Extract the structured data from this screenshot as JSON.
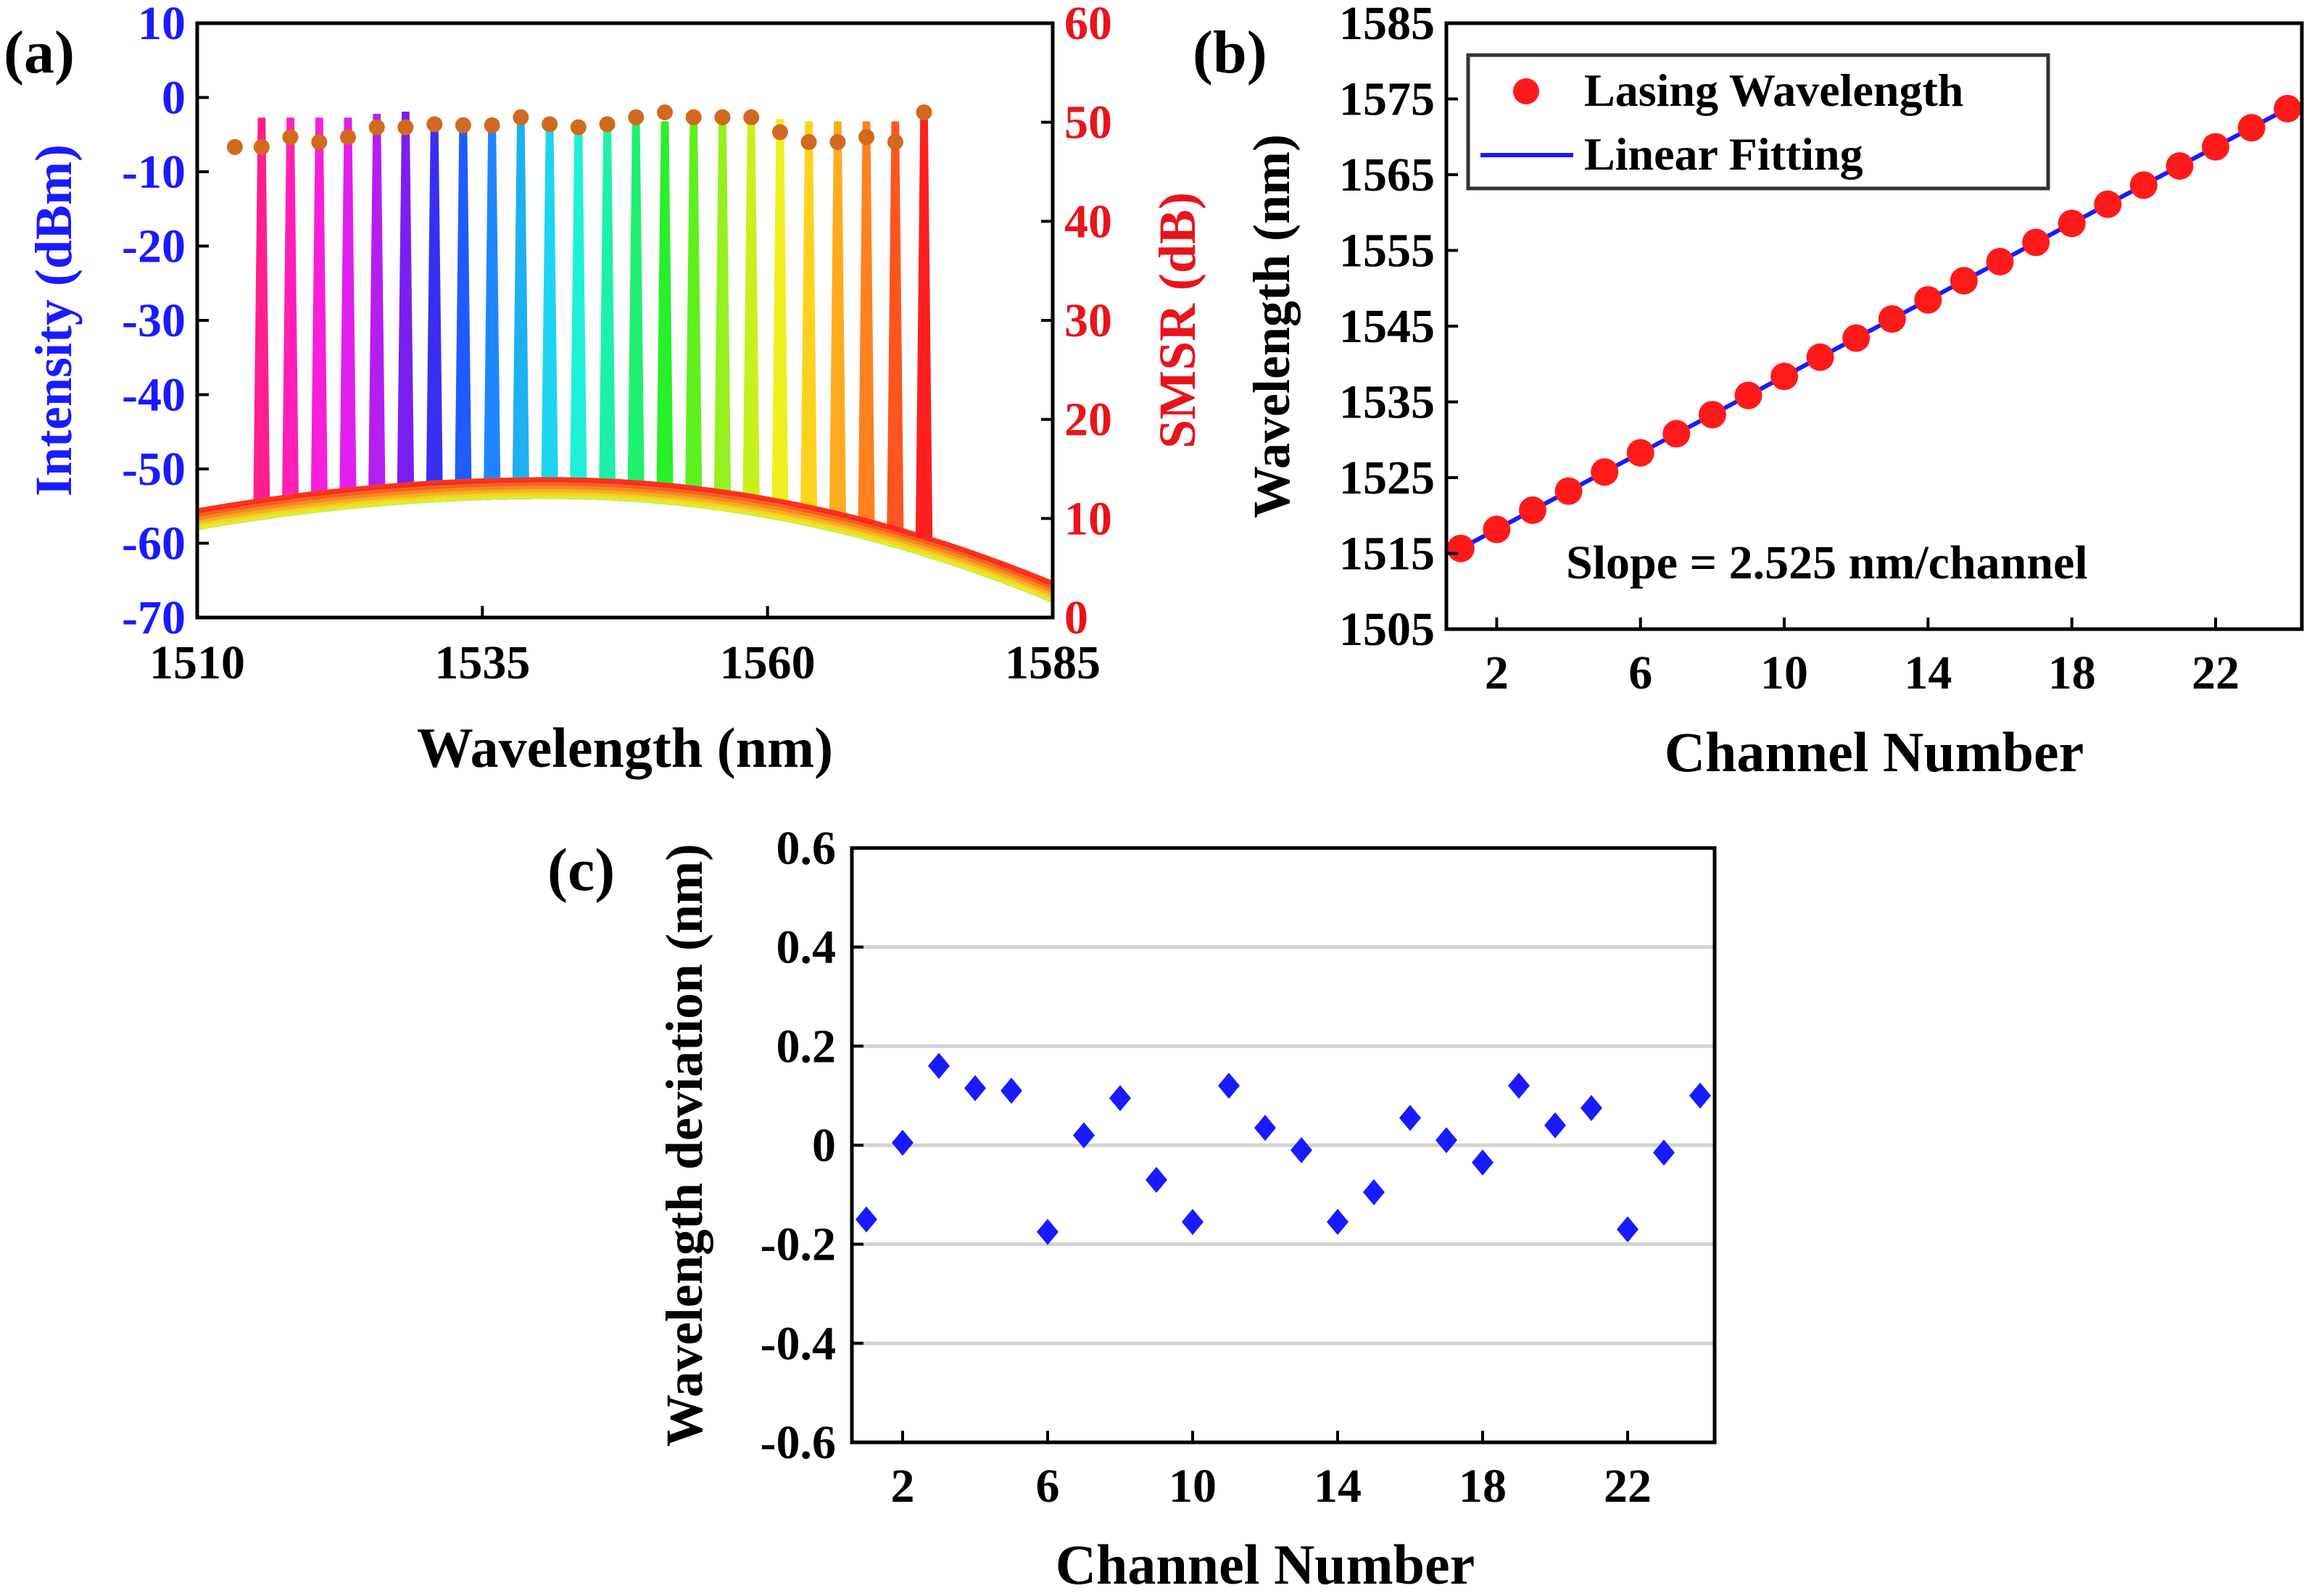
{
  "chart_data": [
    {
      "panel_label": "(a)",
      "type": "line",
      "xlabel": "Wavelength (nm)",
      "ylabel_left": "Intensity (dBm)",
      "ylabel_right": "SMSR (dB)",
      "xlim": [
        1510,
        1585
      ],
      "ylim_left": [
        -70,
        10
      ],
      "ylim_right": [
        0,
        60
      ],
      "xticks": [
        1510,
        1535,
        1560,
        1585
      ],
      "yticks_left": [
        10,
        0,
        -10,
        -20,
        -30,
        -40,
        -50,
        -60,
        -70
      ],
      "yticks_right": [
        60,
        50,
        40,
        30,
        20,
        10,
        0
      ],
      "left_axis_color": "#1a1aff",
      "right_axis_color": "#e8141b",
      "peak_wavelengths": [
        1515.65,
        1518.17,
        1520.7,
        1523.22,
        1525.75,
        1528.27,
        1530.8,
        1533.32,
        1535.85,
        1538.37,
        1540.9,
        1543.42,
        1545.95,
        1548.47,
        1551.0,
        1553.52,
        1556.05,
        1558.57,
        1561.1,
        1563.62,
        1566.15,
        1568.67,
        1571.2,
        1573.72
      ],
      "peak_intensity_dbm": [
        -3,
        -3,
        -3,
        -3,
        -2.5,
        -2.2,
        -3,
        -3.2,
        -3.5,
        -3.5,
        -3.5,
        -3.5,
        -3.3,
        -3.5,
        -3.5,
        -3.5,
        -3.5,
        -3.3,
        -3.2,
        -3.5,
        -3.5,
        -3.5,
        -3.5,
        -3
      ],
      "peak_colors": [
        "#ff1f8e",
        "#ff1fb5",
        "#f71fd9",
        "#e01ff0",
        "#b41ff0",
        "#7a1ff0",
        "#3a2ff0",
        "#1f5cff",
        "#1f86ff",
        "#1fb0f0",
        "#1fd4f0",
        "#1ff0d8",
        "#1ff0a8",
        "#1ff070",
        "#28f02a",
        "#5ff01f",
        "#95f01f",
        "#c8f01f",
        "#eef01f",
        "#ffd21f",
        "#ffab1f",
        "#ff811f",
        "#ff551f",
        "#ff1f1f"
      ],
      "smsr_db": [
        47.5,
        47.5,
        48.5,
        48,
        48.5,
        49.5,
        49.5,
        49.8,
        49.7,
        49.7,
        50.5,
        49.8,
        49.5,
        49.8,
        50.5,
        51,
        50.5,
        50.5,
        50.5,
        49,
        48,
        48,
        48.5,
        48,
        51
      ],
      "smsr_wavelengths": [
        1513.3,
        1515.65,
        1518.17,
        1520.7,
        1523.22,
        1525.75,
        1528.27,
        1530.8,
        1533.32,
        1535.85,
        1538.37,
        1540.9,
        1543.42,
        1545.95,
        1548.47,
        1551.0,
        1553.52,
        1556.05,
        1558.57,
        1561.1,
        1563.62,
        1566.15,
        1568.67,
        1571.2,
        1573.72
      ],
      "smsr_marker_color": "#d2691e"
    },
    {
      "panel_label": "(b)",
      "type": "scatter",
      "xlabel": "Channel Number",
      "ylabel": "Wavelength (nm)",
      "xlim": [
        0.6,
        24.4
      ],
      "ylim": [
        1505,
        1585
      ],
      "xticks": [
        2,
        6,
        10,
        14,
        18,
        22
      ],
      "yticks": [
        1505,
        1515,
        1525,
        1535,
        1545,
        1555,
        1565,
        1575,
        1585
      ],
      "x": [
        1,
        2,
        3,
        4,
        5,
        6,
        7,
        8,
        9,
        10,
        11,
        12,
        13,
        14,
        15,
        16,
        17,
        18,
        19,
        20,
        21,
        22,
        23,
        24
      ],
      "y": [
        1515.65,
        1518.17,
        1520.7,
        1523.22,
        1525.75,
        1528.27,
        1530.8,
        1533.32,
        1535.85,
        1538.37,
        1540.9,
        1543.42,
        1545.95,
        1548.47,
        1551.0,
        1553.52,
        1556.05,
        1558.57,
        1561.1,
        1563.62,
        1566.15,
        1568.67,
        1571.2,
        1573.72
      ],
      "fit": {
        "slope": 2.525,
        "intercept": 1513.125
      },
      "legend": [
        "Lasing Wavelength",
        "Linear Fitting"
      ],
      "legend_position": "top-left",
      "annotation": "Slope = 2.525 nm/channel",
      "marker_color": "#ff1a1a",
      "line_color": "#1a1aff"
    },
    {
      "panel_label": "(c)",
      "type": "scatter",
      "xlabel": "Channel Number",
      "ylabel": "Wavelength deviation (nm)",
      "xlim": [
        0.6,
        24.4
      ],
      "ylim": [
        -0.6,
        0.6
      ],
      "xticks": [
        2,
        6,
        10,
        14,
        18,
        22
      ],
      "yticks": [
        0.6,
        0.4,
        0.2,
        0,
        -0.2,
        -0.4,
        -0.6
      ],
      "ytick_labels": [
        "0.6",
        "0.4",
        "0.2",
        "0",
        "-0.2",
        "-0.4",
        "-0.6"
      ],
      "grid": true,
      "x": [
        1,
        2,
        3,
        4,
        5,
        6,
        7,
        8,
        9,
        10,
        11,
        12,
        13,
        14,
        15,
        16,
        17,
        18,
        19,
        20,
        21,
        22,
        23,
        24
      ],
      "y": [
        -0.15,
        0.005,
        0.16,
        0.115,
        0.11,
        -0.175,
        0.02,
        0.095,
        -0.07,
        -0.155,
        0.12,
        0.035,
        -0.01,
        -0.155,
        -0.095,
        0.055,
        0.01,
        -0.035,
        0.12,
        0.04,
        0.075,
        -0.17,
        -0.015,
        0.1
      ],
      "marker_color": "#1a1aff"
    }
  ]
}
